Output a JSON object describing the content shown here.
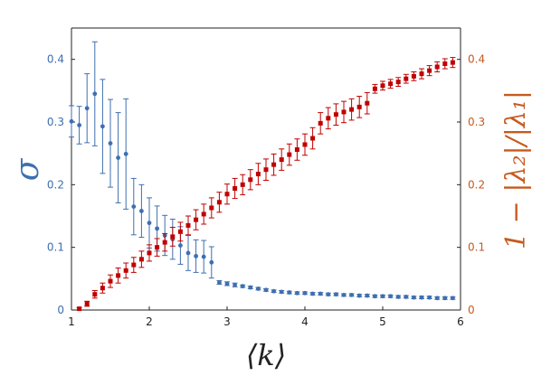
{
  "chart_data": {
    "type": "scatter",
    "xlabel": "⟨k⟩",
    "ylabel_left": "σ",
    "ylabel_right": "1 − |λ₂|/|λ₁|",
    "xlim": [
      1,
      6
    ],
    "ylim_left": [
      0,
      0.45
    ],
    "ylim_right": [
      0,
      0.45
    ],
    "xticks": [
      "1",
      "2",
      "3",
      "4",
      "5",
      "6"
    ],
    "yticks_left": [
      "0",
      "0.1",
      "0.2",
      "0.3",
      "0.4"
    ],
    "yticks_right": [
      "0",
      "0.1",
      "0.2",
      "0.3",
      "0.4"
    ],
    "grid": false,
    "colors": {
      "left": "#3E6FB0",
      "right": "#C00000",
      "right_axis": "#C65A1E",
      "axis": "#222222"
    },
    "series": [
      {
        "name": "sigma",
        "axis": "left",
        "marker": "circle",
        "x": [
          1.0,
          1.1,
          1.2,
          1.3,
          1.4,
          1.5,
          1.6,
          1.7,
          1.8,
          1.9,
          2.0,
          2.1,
          2.2,
          2.3,
          2.4,
          2.5,
          2.6,
          2.7,
          2.8,
          2.9,
          3.0,
          3.1,
          3.2,
          3.3,
          3.4,
          3.5,
          3.6,
          3.7,
          3.8,
          3.9,
          4.0,
          4.1,
          4.2,
          4.3,
          4.4,
          4.5,
          4.6,
          4.7,
          4.8,
          4.9,
          5.0,
          5.1,
          5.2,
          5.3,
          5.4,
          5.5,
          5.6,
          5.7,
          5.8,
          5.9
        ],
        "values": [
          0.301,
          0.295,
          0.322,
          0.345,
          0.293,
          0.266,
          0.243,
          0.249,
          0.165,
          0.158,
          0.139,
          0.13,
          0.119,
          0.113,
          0.103,
          0.091,
          0.086,
          0.085,
          0.076,
          0.044,
          0.042,
          0.04,
          0.038,
          0.036,
          0.034,
          0.032,
          0.03,
          0.029,
          0.028,
          0.027,
          0.027,
          0.026,
          0.026,
          0.025,
          0.025,
          0.024,
          0.024,
          0.023,
          0.023,
          0.022,
          0.022,
          0.022,
          0.021,
          0.021,
          0.02,
          0.02,
          0.02,
          0.019,
          0.019,
          0.019
        ],
        "errors": [
          0.025,
          0.03,
          0.055,
          0.083,
          0.075,
          0.07,
          0.072,
          0.088,
          0.045,
          0.042,
          0.04,
          0.036,
          0.032,
          0.032,
          0.03,
          0.028,
          0.026,
          0.026,
          0.025,
          0.003,
          0.003,
          0.003,
          0.002,
          0.002,
          0.002,
          0.002,
          0.002,
          0.002,
          0.002,
          0.002,
          0.002,
          0.002,
          0.002,
          0.002,
          0.002,
          0.002,
          0.002,
          0.002,
          0.002,
          0.002,
          0.002,
          0.002,
          0.002,
          0.002,
          0.002,
          0.002,
          0.002,
          0.002,
          0.002,
          0.002
        ]
      },
      {
        "name": "1 - |lambda2|/|lambda1|",
        "axis": "right",
        "marker": "square",
        "x": [
          1.1,
          1.2,
          1.3,
          1.4,
          1.5,
          1.6,
          1.7,
          1.8,
          1.9,
          2.0,
          2.1,
          2.2,
          2.3,
          2.4,
          2.5,
          2.6,
          2.7,
          2.8,
          2.9,
          3.0,
          3.1,
          3.2,
          3.3,
          3.4,
          3.5,
          3.6,
          3.7,
          3.8,
          3.9,
          4.0,
          4.1,
          4.2,
          4.3,
          4.4,
          4.5,
          4.6,
          4.7,
          4.8,
          4.9,
          5.0,
          5.1,
          5.2,
          5.3,
          5.4,
          5.5,
          5.6,
          5.7,
          5.8,
          5.9
        ],
        "values": [
          0.002,
          0.01,
          0.025,
          0.035,
          0.046,
          0.055,
          0.063,
          0.072,
          0.081,
          0.091,
          0.1,
          0.108,
          0.117,
          0.125,
          0.135,
          0.144,
          0.153,
          0.163,
          0.172,
          0.185,
          0.194,
          0.2,
          0.208,
          0.217,
          0.224,
          0.232,
          0.24,
          0.248,
          0.256,
          0.264,
          0.274,
          0.298,
          0.306,
          0.312,
          0.316,
          0.32,
          0.324,
          0.33,
          0.353,
          0.358,
          0.361,
          0.364,
          0.369,
          0.373,
          0.377,
          0.382,
          0.388,
          0.393,
          0.395
        ],
        "errors": [
          0.002,
          0.004,
          0.006,
          0.008,
          0.01,
          0.012,
          0.012,
          0.012,
          0.013,
          0.013,
          0.014,
          0.014,
          0.015,
          0.015,
          0.015,
          0.016,
          0.016,
          0.016,
          0.016,
          0.016,
          0.016,
          0.016,
          0.016,
          0.017,
          0.017,
          0.017,
          0.017,
          0.017,
          0.017,
          0.017,
          0.017,
          0.017,
          0.017,
          0.017,
          0.017,
          0.017,
          0.017,
          0.017,
          0.007,
          0.007,
          0.007,
          0.007,
          0.007,
          0.007,
          0.008,
          0.008,
          0.008,
          0.008,
          0.008
        ]
      }
    ]
  }
}
